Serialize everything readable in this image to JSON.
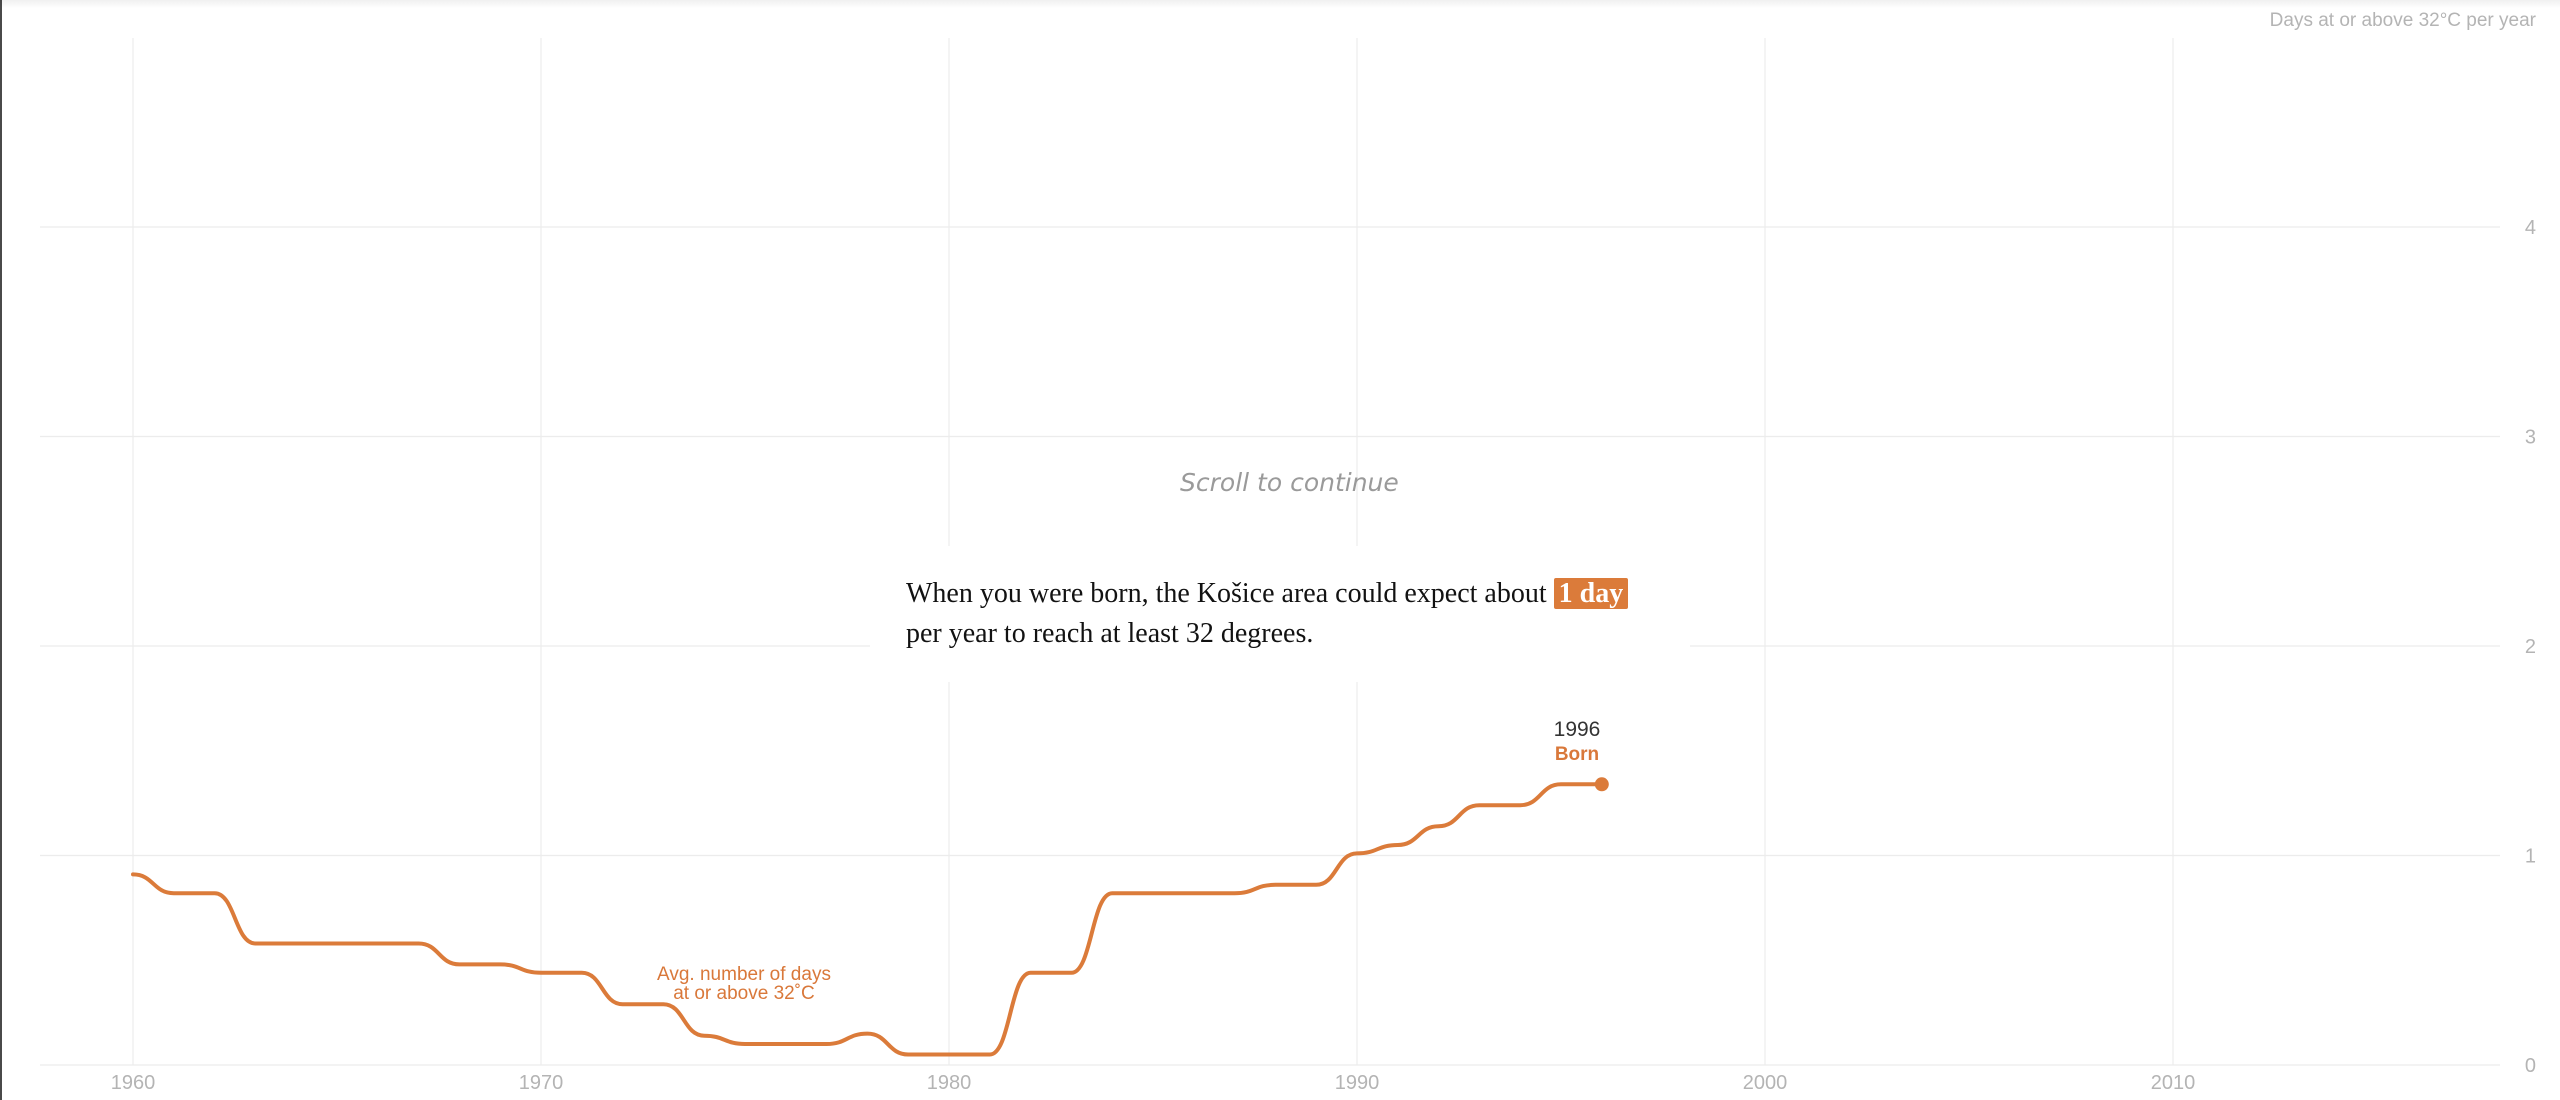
{
  "chart_data": {
    "type": "line",
    "title": "",
    "ylabel": "Days at or above 32°C per year",
    "xlabel": "",
    "xlim": [
      1957.7,
      2018.1
    ],
    "ylim": [
      0,
      4.1
    ],
    "xticks": [
      1960,
      1970,
      1980,
      1990,
      2000,
      2010
    ],
    "yticks": [
      0,
      1,
      2,
      3,
      4
    ],
    "grid": true,
    "series": [
      {
        "name": "Avg. number of days at or above 32˚C",
        "color": "#db7b3a",
        "x": [
          1960,
          1961,
          1962,
          1963,
          1964,
          1965,
          1966,
          1967,
          1968,
          1969,
          1970,
          1971,
          1972,
          1973,
          1974,
          1975,
          1976,
          1977,
          1978,
          1979,
          1980,
          1981,
          1982,
          1983,
          1984,
          1985,
          1986,
          1987,
          1988,
          1989,
          1990,
          1991,
          1992,
          1993,
          1994,
          1995,
          1996
        ],
        "values": [
          0.91,
          0.82,
          0.82,
          0.58,
          0.58,
          0.58,
          0.58,
          0.58,
          0.48,
          0.48,
          0.44,
          0.44,
          0.29,
          0.29,
          0.14,
          0.1,
          0.1,
          0.1,
          0.15,
          0.05,
          0.05,
          0.05,
          0.44,
          0.44,
          0.82,
          0.82,
          0.82,
          0.82,
          0.86,
          0.86,
          1.01,
          1.05,
          1.14,
          1.24,
          1.24,
          1.34,
          1.34
        ]
      }
    ],
    "annotations": {
      "born_year": "1996",
      "born_label": "Born",
      "series_label_line1": "Avg. number of days",
      "series_label_line2": "at or above 32˚C"
    }
  },
  "scroll_hint": "Scroll to continue",
  "narrative": {
    "prefix": "When you were born, the Košice area could expect about",
    "highlight": "1 day",
    "suffix": "per year to reach at least 32 degrees."
  },
  "colors": {
    "accent": "#db7b3a",
    "grid": "#ececec",
    "axis_text": "#b4b4b4"
  }
}
